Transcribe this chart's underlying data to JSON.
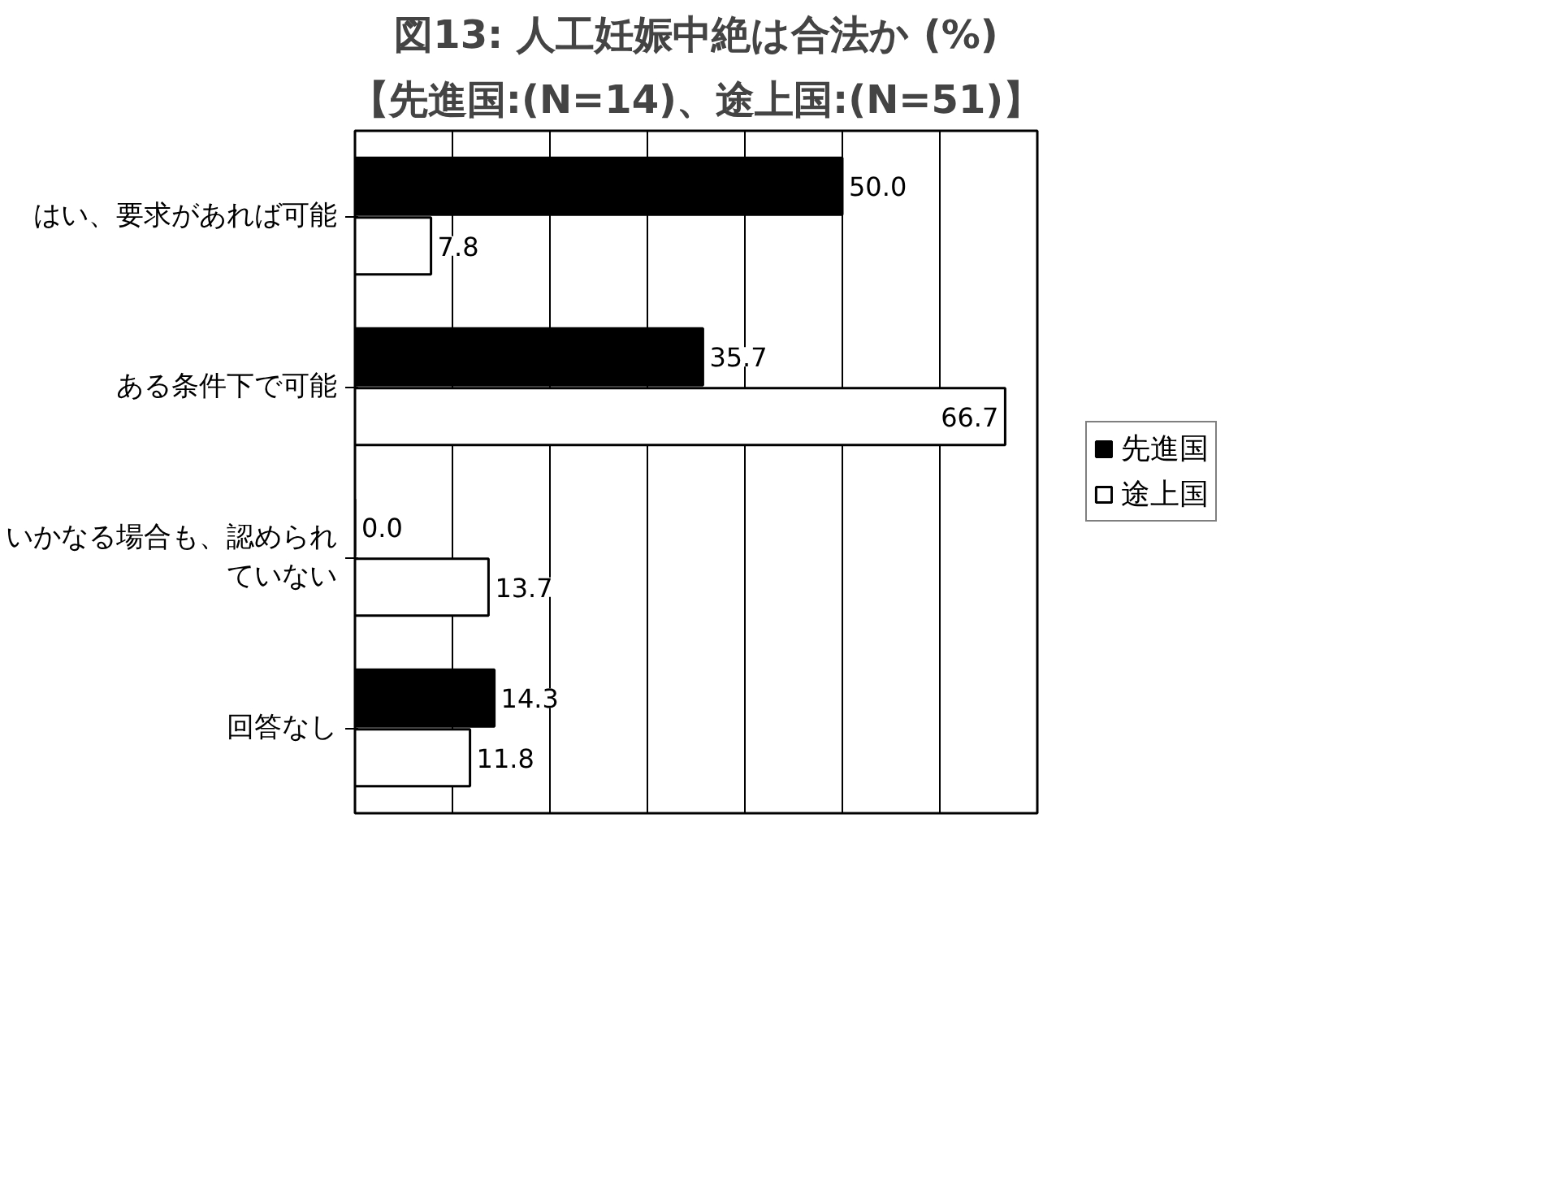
{
  "chart_data": {
    "type": "bar",
    "orientation": "horizontal",
    "title": "図13: 人工妊娠中絶は合法か (%)",
    "subtitle": "【先進国:(N=14)、途上国:(N=51)】",
    "categories": [
      "はい、要求があれば可能",
      "ある条件下で可能",
      "いかなる場合も、認められていない",
      "回答なし"
    ],
    "series": [
      {
        "name": "先進国",
        "color": "#000000",
        "values": [
          50.0,
          35.7,
          0.0,
          14.3
        ],
        "value_labels": [
          "50.0",
          "35.7",
          "0.0",
          "14.3"
        ]
      },
      {
        "name": "途上国",
        "color": "#ffffff",
        "values": [
          7.8,
          66.7,
          13.7,
          11.8
        ],
        "value_labels": [
          "7.8",
          "66.7",
          "13.7",
          "11.8"
        ]
      }
    ],
    "xlim": [
      0,
      70
    ],
    "xticks": [
      {
        "value": 0,
        "label": null
      },
      {
        "value": 10,
        "label": null
      },
      {
        "value": 20,
        "label": null
      },
      {
        "value": 30,
        "label": null
      },
      {
        "value": 40,
        "label": null
      },
      {
        "value": 50,
        "label": null
      },
      {
        "value": 60,
        "label": null
      },
      {
        "value": 70,
        "label": null
      }
    ],
    "tick_labels": "y",
    "grid": "x",
    "legend": "right"
  }
}
